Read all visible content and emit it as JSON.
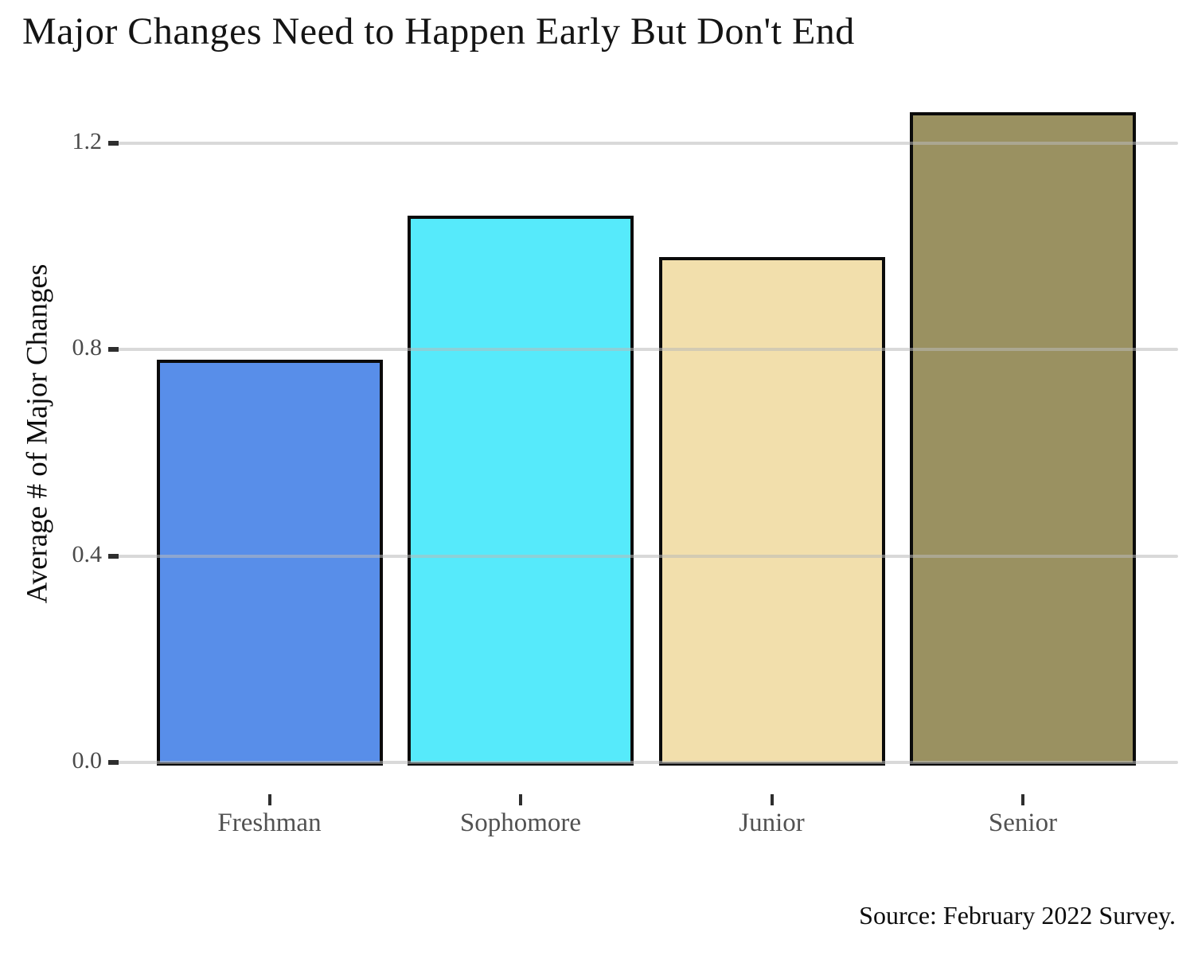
{
  "chart_data": {
    "type": "bar",
    "title": "Major Changes Need to Happen Early But Don't End",
    "ylabel": "Average # of Major Changes",
    "xlabel": "",
    "categories": [
      "Freshman",
      "Sophomore",
      "Junior",
      "Senior"
    ],
    "values": [
      0.78,
      1.06,
      0.98,
      1.26
    ],
    "bar_colors": [
      "#588EE9",
      "#56EAFB",
      "#F2DFAC",
      "#9A9161"
    ],
    "bar_border_color": "#0b0b0b",
    "ytick_labels": [
      "0.0",
      "0.4",
      "0.8",
      "1.2"
    ],
    "ytick_values": [
      0.0,
      0.4,
      0.8,
      1.2
    ],
    "ylim": [
      0,
      1.29
    ],
    "grid": "horizontal gridlines at y ticks",
    "gridline_color": "#dcdcdc",
    "legend": "none",
    "source": "Source: February 2022 Survey."
  }
}
